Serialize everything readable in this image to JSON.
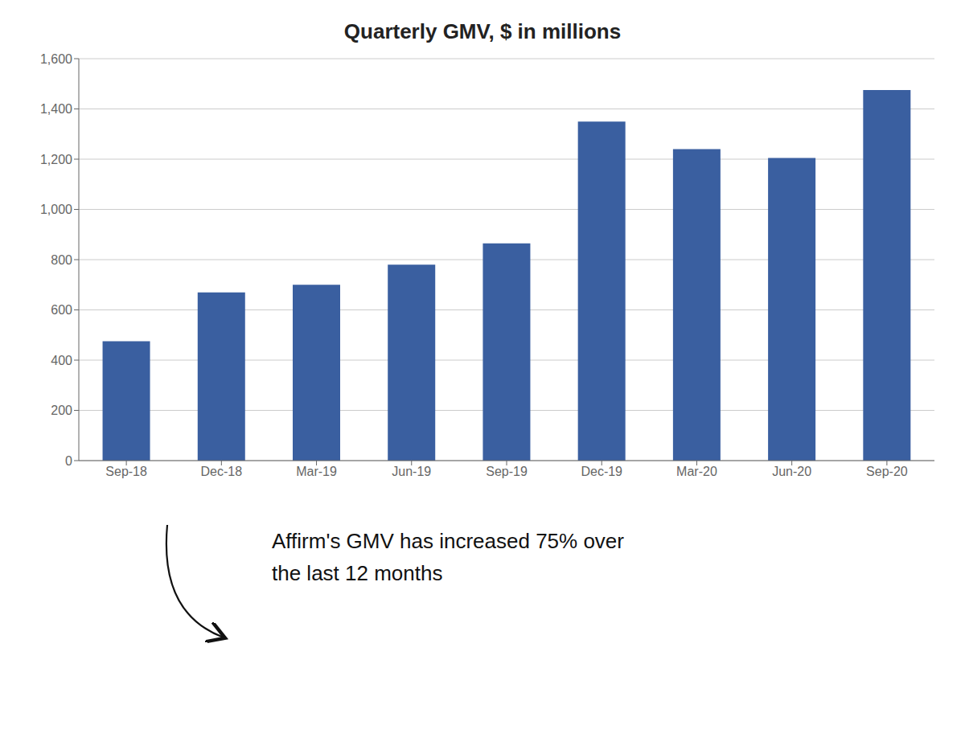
{
  "chart_data": {
    "type": "bar",
    "title": "Quarterly GMV, $ in millions",
    "categories": [
      "Sep-18",
      "Dec-18",
      "Mar-19",
      "Jun-19",
      "Sep-19",
      "Dec-19",
      "Mar-20",
      "Jun-20",
      "Sep-20"
    ],
    "values": [
      475,
      670,
      700,
      780,
      865,
      1350,
      1240,
      1205,
      1475
    ],
    "color": "#3A5FA0",
    "ylim": [
      0,
      1600
    ],
    "yticks": [
      0,
      200,
      400,
      600,
      800,
      {
        "value": 1000,
        "label": "1,000"
      },
      {
        "value": 1200,
        "label": "1,200"
      },
      {
        "value": 1400,
        "label": "1,400"
      },
      {
        "value": 1600,
        "label": "1,600"
      }
    ],
    "grid": true,
    "annotations": [
      "Affirm's GMV has increased 75% over",
      "the last 12 months"
    ]
  }
}
